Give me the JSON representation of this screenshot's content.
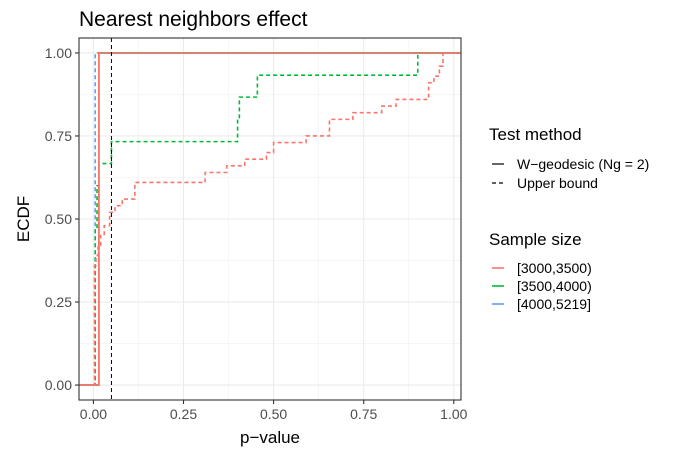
{
  "chart_data": {
    "type": "line",
    "title": "Nearest neighbors effect",
    "xlabel": "p−value",
    "ylabel": "ECDF",
    "xlim": [
      -0.04,
      1.02
    ],
    "ylim": [
      -0.045,
      1.045
    ],
    "x_ticks": [
      0,
      0.25,
      0.5,
      0.75,
      1
    ],
    "x_tick_labels": [
      "0.00",
      "0.25",
      "0.50",
      "0.75",
      "1.00"
    ],
    "y_ticks": [
      0,
      0.25,
      0.5,
      0.75,
      1
    ],
    "y_tick_labels": [
      "0.00",
      "0.25",
      "0.50",
      "0.75",
      "1.00"
    ],
    "grid": true,
    "legend_position": "right",
    "linetype_legend": {
      "title": "Test method",
      "entries": [
        {
          "label": "W−geodesic (Ng = 2)",
          "dash": "solid"
        },
        {
          "label": "Upper bound",
          "dash": "dashed"
        }
      ]
    },
    "color_legend": {
      "title": "Sample size",
      "entries": [
        {
          "label": "[3000,3500)",
          "color": "#F8766D"
        },
        {
          "label": "[3500,4000)",
          "color": "#00BA38"
        },
        {
          "label": "[4000,5219]",
          "color": "#619CFF"
        }
      ]
    },
    "reference_line": {
      "x": 0.05,
      "color": "#000000",
      "dash": "dashed"
    },
    "series": [
      {
        "group": "[4000,5219]",
        "color": "#619CFF",
        "dash": "solid",
        "points": [
          [
            -0.04,
            0
          ],
          [
            0.015,
            0
          ],
          [
            0.015,
            1
          ],
          [
            1.02,
            1
          ]
        ]
      },
      {
        "group": "[4000,5219]",
        "color": "#619CFF",
        "dash": "dashed",
        "points": [
          [
            -0.04,
            0
          ],
          [
            0.005,
            0
          ],
          [
            0.005,
            1
          ],
          [
            1.02,
            1
          ]
        ]
      },
      {
        "group": "[3500,4000)",
        "color": "#00BA38",
        "dash": "solid",
        "points": [
          [
            -0.04,
            0
          ],
          [
            0.015,
            0
          ],
          [
            0.015,
            1
          ],
          [
            1.02,
            1
          ]
        ]
      },
      {
        "group": "[3500,4000)",
        "color": "#00BA38",
        "dash": "dashed",
        "points": [
          [
            -0.04,
            0
          ],
          [
            0.005,
            0
          ],
          [
            0.005,
            0.47
          ],
          [
            0.01,
            0.47
          ],
          [
            0.01,
            0.6
          ],
          [
            0.015,
            0.6
          ],
          [
            0.015,
            0.667
          ],
          [
            0.05,
            0.667
          ],
          [
            0.05,
            0.733
          ],
          [
            0.4,
            0.733
          ],
          [
            0.4,
            0.8
          ],
          [
            0.405,
            0.8
          ],
          [
            0.405,
            0.867
          ],
          [
            0.455,
            0.867
          ],
          [
            0.455,
            0.933
          ],
          [
            0.9,
            0.933
          ],
          [
            0.9,
            1
          ],
          [
            1.02,
            1
          ]
        ]
      },
      {
        "group": "[3000,3500)",
        "color": "#F8766D",
        "dash": "solid",
        "points": [
          [
            -0.04,
            0
          ],
          [
            0.015,
            0
          ],
          [
            0.015,
            1
          ],
          [
            1.02,
            1
          ]
        ]
      },
      {
        "group": "[3000,3500)",
        "color": "#F8766D",
        "dash": "dashed",
        "points": [
          [
            -0.04,
            0
          ],
          [
            0.003,
            0
          ],
          [
            0.003,
            0.36
          ],
          [
            0.007,
            0.36
          ],
          [
            0.007,
            0.39
          ],
          [
            0.013,
            0.39
          ],
          [
            0.013,
            0.42
          ],
          [
            0.02,
            0.42
          ],
          [
            0.02,
            0.45
          ],
          [
            0.03,
            0.45
          ],
          [
            0.03,
            0.48
          ],
          [
            0.045,
            0.48
          ],
          [
            0.045,
            0.52
          ],
          [
            0.06,
            0.52
          ],
          [
            0.06,
            0.54
          ],
          [
            0.08,
            0.54
          ],
          [
            0.08,
            0.56
          ],
          [
            0.115,
            0.56
          ],
          [
            0.115,
            0.61
          ],
          [
            0.31,
            0.61
          ],
          [
            0.31,
            0.64
          ],
          [
            0.37,
            0.64
          ],
          [
            0.37,
            0.66
          ],
          [
            0.42,
            0.66
          ],
          [
            0.42,
            0.68
          ],
          [
            0.48,
            0.68
          ],
          [
            0.48,
            0.7
          ],
          [
            0.5,
            0.7
          ],
          [
            0.5,
            0.73
          ],
          [
            0.59,
            0.73
          ],
          [
            0.59,
            0.75
          ],
          [
            0.655,
            0.75
          ],
          [
            0.655,
            0.8
          ],
          [
            0.72,
            0.8
          ],
          [
            0.72,
            0.82
          ],
          [
            0.8,
            0.82
          ],
          [
            0.8,
            0.84
          ],
          [
            0.84,
            0.84
          ],
          [
            0.84,
            0.86
          ],
          [
            0.93,
            0.86
          ],
          [
            0.93,
            0.91
          ],
          [
            0.945,
            0.91
          ],
          [
            0.945,
            0.93
          ],
          [
            0.96,
            0.93
          ],
          [
            0.96,
            0.96
          ],
          [
            0.97,
            0.96
          ],
          [
            0.97,
            1
          ],
          [
            1.02,
            1
          ]
        ]
      }
    ]
  }
}
